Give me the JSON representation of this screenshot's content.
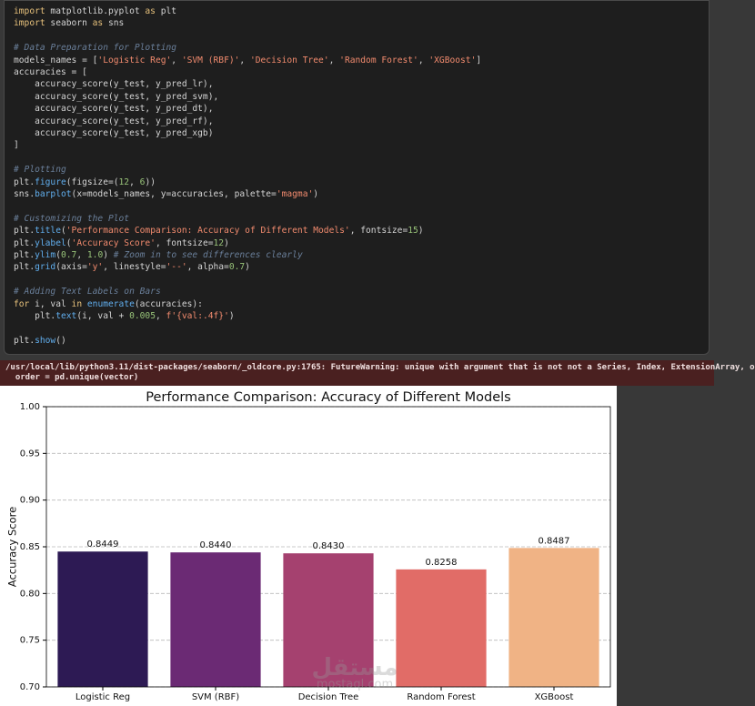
{
  "code": [
    [
      "import matplotlib.pyplot as plt",
      "import seaborn as sns"
    ],
    [
      "# Data Preparation for Plotting",
      "models_names = ['Logistic Reg', 'SVM (RBF)', 'Decision Tree', 'Random Forest', 'XGBoost']",
      "accuracies = [",
      "    accuracy_score(y_test, y_pred_lr),",
      "    accuracy_score(y_test, y_pred_svm),",
      "    accuracy_score(y_test, y_pred_dt),",
      "    accuracy_score(y_test, y_pred_rf),",
      "    accuracy_score(y_test, y_pred_xgb)",
      "]"
    ],
    [
      "# Plotting",
      "plt.figure(figsize=(12, 6))",
      "sns.barplot(x=models_names, y=accuracies, palette='magma')"
    ],
    [
      "# Customizing the Plot",
      "plt.title('Performance Comparison: Accuracy of Different Models', fontsize=15)",
      "plt.ylabel('Accuracy Score', fontsize=12)",
      "plt.ylim(0.7, 1.0) # Zoom in to see differences clearly",
      "plt.grid(axis='y', linestyle='--', alpha=0.7)"
    ],
    [
      "# Adding Text Labels on Bars",
      "for i, val in enumerate(accuracies):",
      "    plt.text(i, val + 0.005, f'{val:.4f}')"
    ],
    [
      "plt.show()"
    ]
  ],
  "warning": [
    "/usr/local/lib/python3.11/dist-packages/seaborn/_oldcore.py:1765: FutureWarning: unique with argument that is not not a Series, Index, ExtensionArray, o",
    "  order = pd.unique(vector)"
  ],
  "watermark": [
    "مستقل",
    "mostaql.com"
  ],
  "chart_data": {
    "type": "bar",
    "title": "Performance Comparison: Accuracy of Different Models",
    "ylabel": "Accuracy Score",
    "categories": [
      "Logistic Reg",
      "SVM (RBF)",
      "Decision Tree",
      "Random Forest",
      "XGBoost"
    ],
    "values": [
      0.8449,
      0.844,
      0.843,
      0.8258,
      0.8487
    ],
    "value_labels": [
      "0.8449",
      "0.8440",
      "0.8430",
      "0.8258",
      "0.8487"
    ],
    "colors": [
      "#2d1a54",
      "#6b2a74",
      "#a5416f",
      "#e16c67",
      "#f0b385"
    ],
    "ylim": [
      0.7,
      1.0
    ],
    "yticks": [
      {
        "value": 0.7,
        "label": "0.70"
      },
      {
        "value": 0.75,
        "label": "0.75"
      },
      {
        "value": 0.8,
        "label": "0.80"
      },
      {
        "value": 0.85,
        "label": "0.85"
      },
      {
        "value": 0.9,
        "label": "0.90"
      },
      {
        "value": 0.95,
        "label": "0.95"
      },
      {
        "value": 1.0,
        "label": "1.00"
      }
    ],
    "grid": true
  }
}
